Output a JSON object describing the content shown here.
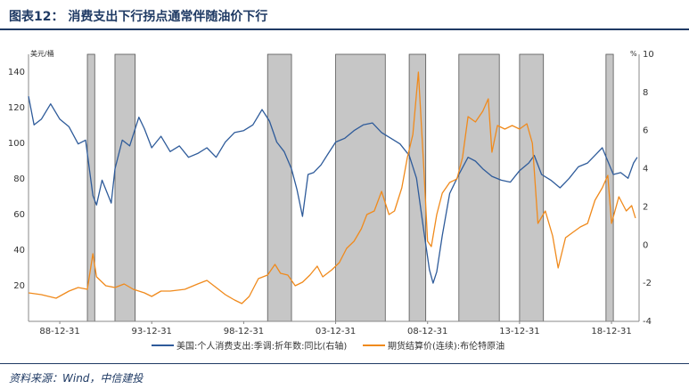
{
  "title": "图表12：  消费支出下行拐点通常伴随油价下行",
  "source": "资料来源：Wind，中信建投",
  "chart_data": {
    "type": "line",
    "left_axis": {
      "unit": "美元/桶",
      "range": [
        0,
        150
      ],
      "ticks": [
        20,
        40,
        60,
        80,
        100,
        120,
        140
      ]
    },
    "right_axis": {
      "unit": "%",
      "range": [
        -4,
        10
      ],
      "ticks": [
        -4,
        -2,
        0,
        2,
        4,
        6,
        8,
        10
      ]
    },
    "x_tick_labels": [
      "88-12-31",
      "93-12-31",
      "98-12-31",
      "03-12-31",
      "08-12-31",
      "13-12-31",
      "18-12-31"
    ],
    "x_range_years": [
      1987.3,
      2020.5
    ],
    "shaded_periods": [
      [
        1990.5,
        1990.9
      ],
      [
        1992.0,
        1993.1
      ],
      [
        2000.3,
        2001.6
      ],
      [
        2004.0,
        2006.7
      ],
      [
        2008.0,
        2008.9
      ],
      [
        2010.7,
        2012.9
      ],
      [
        2014.0,
        2015.3
      ],
      [
        2018.7,
        2019.1
      ]
    ],
    "series": [
      {
        "name": "美国:个人消费支出:季调:折年数:同比(右轴)",
        "axis": "right",
        "color": "#2e5b9a",
        "points": [
          [
            1987.3,
            7.8
          ],
          [
            1987.6,
            6.3
          ],
          [
            1988.0,
            6.6
          ],
          [
            1988.5,
            7.4
          ],
          [
            1989.0,
            6.6
          ],
          [
            1989.5,
            6.2
          ],
          [
            1990.0,
            5.3
          ],
          [
            1990.4,
            5.5
          ],
          [
            1990.8,
            2.6
          ],
          [
            1991.0,
            2.1
          ],
          [
            1991.3,
            3.4
          ],
          [
            1991.8,
            2.2
          ],
          [
            1992.0,
            4.0
          ],
          [
            1992.4,
            5.5
          ],
          [
            1992.8,
            5.2
          ],
          [
            1993.3,
            6.7
          ],
          [
            1993.6,
            6.1
          ],
          [
            1994.0,
            5.1
          ],
          [
            1994.5,
            5.7
          ],
          [
            1995.0,
            4.9
          ],
          [
            1995.5,
            5.2
          ],
          [
            1996.0,
            4.6
          ],
          [
            1996.5,
            4.8
          ],
          [
            1997.0,
            5.1
          ],
          [
            1997.5,
            4.6
          ],
          [
            1998.0,
            5.4
          ],
          [
            1998.5,
            5.9
          ],
          [
            1999.0,
            6.0
          ],
          [
            1999.5,
            6.3
          ],
          [
            2000.0,
            7.1
          ],
          [
            2000.4,
            6.5
          ],
          [
            2000.8,
            5.4
          ],
          [
            2001.2,
            4.9
          ],
          [
            2001.6,
            4.0
          ],
          [
            2001.9,
            2.9
          ],
          [
            2002.2,
            1.5
          ],
          [
            2002.5,
            3.7
          ],
          [
            2002.8,
            3.8
          ],
          [
            2003.2,
            4.2
          ],
          [
            2003.6,
            4.8
          ],
          [
            2004.0,
            5.4
          ],
          [
            2004.5,
            5.6
          ],
          [
            2005.0,
            6.0
          ],
          [
            2005.5,
            6.3
          ],
          [
            2006.0,
            6.4
          ],
          [
            2006.5,
            5.9
          ],
          [
            2007.0,
            5.6
          ],
          [
            2007.5,
            5.3
          ],
          [
            2008.0,
            4.7
          ],
          [
            2008.4,
            3.5
          ],
          [
            2008.8,
            0.7
          ],
          [
            2009.1,
            -1.3
          ],
          [
            2009.3,
            -2.0
          ],
          [
            2009.5,
            -1.4
          ],
          [
            2009.8,
            0.5
          ],
          [
            2010.2,
            2.7
          ],
          [
            2010.7,
            3.7
          ],
          [
            2011.2,
            4.6
          ],
          [
            2011.6,
            4.4
          ],
          [
            2012.0,
            4.0
          ],
          [
            2012.5,
            3.6
          ],
          [
            2013.0,
            3.4
          ],
          [
            2013.5,
            3.3
          ],
          [
            2014.0,
            3.9
          ],
          [
            2014.5,
            4.3
          ],
          [
            2014.8,
            4.7
          ],
          [
            2015.2,
            3.7
          ],
          [
            2015.7,
            3.4
          ],
          [
            2016.2,
            3.0
          ],
          [
            2016.7,
            3.5
          ],
          [
            2017.2,
            4.1
          ],
          [
            2017.7,
            4.3
          ],
          [
            2018.2,
            4.8
          ],
          [
            2018.5,
            5.1
          ],
          [
            2018.8,
            4.4
          ],
          [
            2019.1,
            3.7
          ],
          [
            2019.5,
            3.8
          ],
          [
            2019.9,
            3.5
          ],
          [
            2020.2,
            4.3
          ],
          [
            2020.4,
            4.6
          ]
        ]
      },
      {
        "name": "期货结算价(连续):布伦特原油",
        "axis": "left",
        "color": "#f08a1c",
        "points": [
          [
            1987.3,
            16
          ],
          [
            1988.0,
            15
          ],
          [
            1988.8,
            13
          ],
          [
            1989.5,
            17
          ],
          [
            1990.0,
            19
          ],
          [
            1990.5,
            18
          ],
          [
            1990.8,
            38
          ],
          [
            1991.0,
            25
          ],
          [
            1991.5,
            20
          ],
          [
            1992.0,
            19
          ],
          [
            1992.5,
            21
          ],
          [
            1993.0,
            18
          ],
          [
            1993.6,
            16
          ],
          [
            1994.0,
            14
          ],
          [
            1994.5,
            17
          ],
          [
            1995.0,
            17
          ],
          [
            1995.8,
            18
          ],
          [
            1996.5,
            21
          ],
          [
            1997.0,
            23
          ],
          [
            1997.5,
            19
          ],
          [
            1998.0,
            15
          ],
          [
            1998.5,
            12
          ],
          [
            1998.9,
            10
          ],
          [
            1999.3,
            14
          ],
          [
            1999.8,
            24
          ],
          [
            2000.3,
            26
          ],
          [
            2000.7,
            32
          ],
          [
            2001.0,
            27
          ],
          [
            2001.4,
            26
          ],
          [
            2001.8,
            20
          ],
          [
            2002.2,
            22
          ],
          [
            2002.6,
            26
          ],
          [
            2003.0,
            31
          ],
          [
            2003.3,
            25
          ],
          [
            2003.8,
            29
          ],
          [
            2004.2,
            33
          ],
          [
            2004.6,
            41
          ],
          [
            2005.0,
            45
          ],
          [
            2005.4,
            52
          ],
          [
            2005.7,
            60
          ],
          [
            2006.1,
            62
          ],
          [
            2006.5,
            73
          ],
          [
            2006.9,
            60
          ],
          [
            2007.2,
            62
          ],
          [
            2007.6,
            75
          ],
          [
            2007.9,
            92
          ],
          [
            2008.2,
            105
          ],
          [
            2008.5,
            140
          ],
          [
            2008.8,
            85
          ],
          [
            2009.0,
            45
          ],
          [
            2009.2,
            42
          ],
          [
            2009.5,
            60
          ],
          [
            2009.8,
            72
          ],
          [
            2010.2,
            78
          ],
          [
            2010.6,
            80
          ],
          [
            2010.9,
            92
          ],
          [
            2011.2,
            115
          ],
          [
            2011.6,
            112
          ],
          [
            2012.0,
            118
          ],
          [
            2012.3,
            125
          ],
          [
            2012.5,
            95
          ],
          [
            2012.8,
            110
          ],
          [
            2013.2,
            108
          ],
          [
            2013.6,
            110
          ],
          [
            2014.0,
            108
          ],
          [
            2014.4,
            111
          ],
          [
            2014.7,
            100
          ],
          [
            2015.0,
            55
          ],
          [
            2015.4,
            62
          ],
          [
            2015.8,
            48
          ],
          [
            2016.1,
            30
          ],
          [
            2016.5,
            47
          ],
          [
            2016.9,
            50
          ],
          [
            2017.3,
            53
          ],
          [
            2017.7,
            55
          ],
          [
            2018.1,
            68
          ],
          [
            2018.5,
            75
          ],
          [
            2018.8,
            82
          ],
          [
            2019.0,
            55
          ],
          [
            2019.4,
            70
          ],
          [
            2019.8,
            62
          ],
          [
            2020.1,
            65
          ],
          [
            2020.3,
            58
          ]
        ]
      }
    ]
  }
}
